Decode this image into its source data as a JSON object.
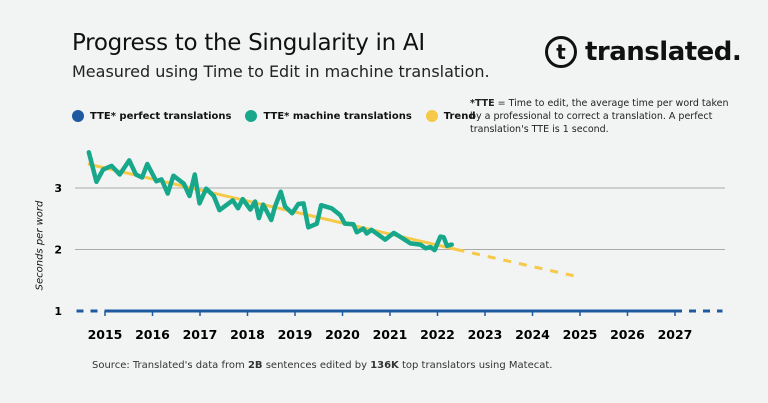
{
  "title": "Progress to the Singularity in AI",
  "subtitle": "Measured using Time to Edit in machine translation.",
  "logo": "translated.",
  "note": {
    "bold": "*TTE",
    "text": " = Time to edit, the average time per word taken by a professional to correct a translation. A perfect translation's TTE is 1 second."
  },
  "source": {
    "p1": "Source:  Translated's data from ",
    "b1": "2B",
    "p2": " sentences edited by ",
    "b2": "136K",
    "p3": " top translators using Matecat."
  },
  "chart_data": {
    "type": "line",
    "title": "Progress to the Singularity in AI",
    "ylabel": "Seconds per word",
    "xlim": [
      2014.37,
      2028.0
    ],
    "ylim": [
      0.6,
      3.9
    ],
    "xticks": [
      "2015",
      "2016",
      "2017",
      "2018",
      "2019",
      "2020",
      "2021",
      "2022",
      "2023",
      "2024",
      "2025",
      "2026",
      "2027"
    ],
    "yticks": [
      "1",
      "2",
      "3"
    ],
    "grid": "horizontal",
    "legend_position": "top-left",
    "series": [
      {
        "name": "TTE* perfect translations",
        "color": "#1e5aa0",
        "x": [
          2014.4,
          2015,
          2027,
          2028.0
        ],
        "y": [
          1,
          1,
          1,
          1
        ],
        "solid_range": [
          2015,
          2027
        ]
      },
      {
        "name": "TTE* machine translations",
        "color": "#17a88b",
        "x": [
          2014.66,
          2014.82,
          2014.96,
          2015.14,
          2015.31,
          2015.51,
          2015.65,
          2015.78,
          2015.89,
          2016.08,
          2016.19,
          2016.32,
          2016.44,
          2016.66,
          2016.78,
          2016.89,
          2016.99,
          2017.13,
          2017.29,
          2017.41,
          2017.69,
          2017.8,
          2017.9,
          2018.06,
          2018.16,
          2018.24,
          2018.33,
          2018.5,
          2018.58,
          2018.7,
          2018.79,
          2018.94,
          2019.07,
          2019.18,
          2019.28,
          2019.46,
          2019.55,
          2019.77,
          2019.95,
          2020.05,
          2020.23,
          2020.3,
          2020.44,
          2020.51,
          2020.61,
          2020.9,
          2021.08,
          2021.25,
          2021.43,
          2021.64,
          2021.75,
          2021.85,
          2021.94,
          2022.06,
          2022.13,
          2022.2,
          2022.3
        ],
        "y": [
          3.58,
          3.1,
          3.3,
          3.36,
          3.22,
          3.45,
          3.22,
          3.17,
          3.39,
          3.11,
          3.14,
          2.91,
          3.2,
          3.07,
          2.87,
          3.22,
          2.75,
          2.99,
          2.87,
          2.64,
          2.8,
          2.67,
          2.82,
          2.65,
          2.78,
          2.51,
          2.73,
          2.48,
          2.7,
          2.94,
          2.7,
          2.59,
          2.74,
          2.75,
          2.36,
          2.42,
          2.72,
          2.67,
          2.56,
          2.42,
          2.41,
          2.28,
          2.34,
          2.26,
          2.32,
          2.16,
          2.27,
          2.19,
          2.1,
          2.08,
          2.02,
          2.04,
          1.99,
          2.21,
          2.2,
          2.06,
          2.08
        ]
      },
      {
        "name": "Trend",
        "color": "#f7c948",
        "x": [
          2014.64,
          2022.4,
          2025.0
        ],
        "y": [
          3.39,
          2.0,
          1.55
        ],
        "solid_until": 2022.4
      }
    ]
  }
}
